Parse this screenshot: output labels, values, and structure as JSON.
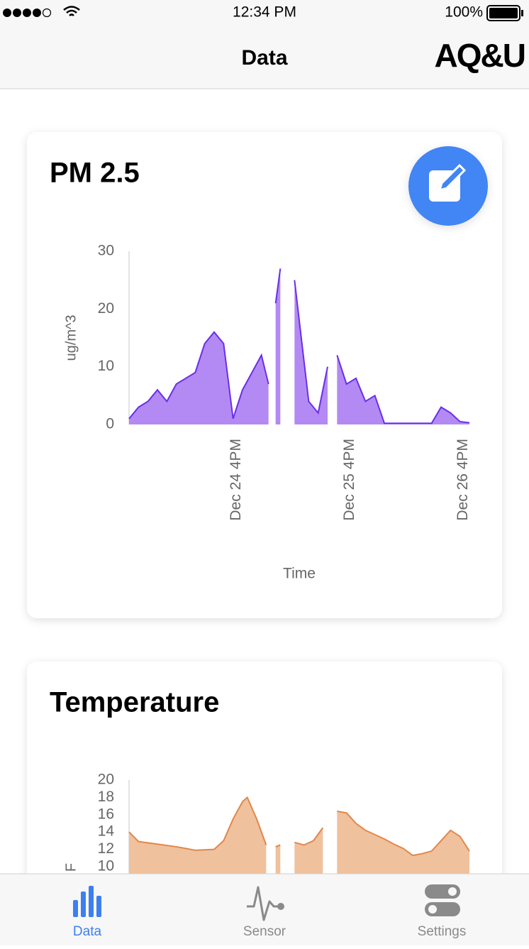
{
  "status_bar": {
    "time": "12:34 PM",
    "battery": "100%"
  },
  "nav": {
    "title": "Data",
    "logo": "AQ&U"
  },
  "chart_data": [
    {
      "type": "area",
      "title": "PM 2.5",
      "ylabel": "ug/m^3",
      "xlabel": "Time",
      "color": "#6a2ee8",
      "fill": "#b38af3",
      "xlim": [
        -23,
        49
      ],
      "xticks": [
        {
          "value": 0,
          "label": "Dec 24 4PM"
        },
        {
          "value": 24,
          "label": "Dec 25 4PM"
        },
        {
          "value": 48,
          "label": "Dec 26 4PM"
        }
      ],
      "ylim": [
        0,
        30
      ],
      "yticks": [
        0,
        10,
        20,
        30
      ],
      "x": [
        -23,
        -21,
        -19,
        -17,
        -15,
        -13,
        -11,
        -9,
        -7,
        -5,
        -3,
        -1,
        1,
        3,
        5,
        6.5,
        7,
        8,
        9,
        10,
        11,
        12,
        13,
        15,
        17,
        19,
        20,
        21,
        23,
        25,
        27,
        29,
        31,
        33,
        35,
        37,
        39,
        41,
        43,
        45,
        47,
        49
      ],
      "values": [
        1,
        3,
        4,
        6,
        4,
        7,
        8,
        9,
        14,
        16,
        14,
        1,
        6,
        9,
        12,
        7,
        null,
        21,
        27,
        null,
        null,
        25,
        18,
        4,
        2,
        10,
        null,
        12,
        7,
        8,
        4,
        5,
        0.2,
        0.2,
        0.2,
        0.2,
        0.2,
        0.2,
        3,
        2,
        0.5,
        0.3
      ]
    },
    {
      "type": "area",
      "title": "Temperature",
      "ylabel": "F",
      "color": "#e0884a",
      "fill": "#f0c19d",
      "xlim": [
        -23,
        49
      ],
      "ylim": [
        10,
        20
      ],
      "yticks": [
        10,
        12,
        14,
        16,
        18,
        20
      ],
      "x": [
        -23,
        -21,
        -17,
        -13,
        -9,
        -5,
        -3,
        -1,
        1,
        2,
        4,
        6,
        7,
        8,
        9,
        10,
        11,
        12,
        14,
        16,
        18,
        20,
        21,
        23,
        25,
        27,
        29,
        31,
        33,
        35,
        37,
        39,
        41,
        43,
        45,
        47,
        49
      ],
      "values": [
        14,
        12.9,
        12.6,
        12.3,
        11.9,
        12,
        13,
        15.5,
        17.5,
        18,
        15.5,
        12.5,
        null,
        12.3,
        12.5,
        null,
        null,
        12.8,
        12.5,
        13,
        14.5,
        null,
        16.4,
        16.2,
        15,
        14.2,
        13.7,
        13.2,
        12.6,
        12.1,
        11.3,
        11.5,
        11.8,
        13,
        14.2,
        13.5,
        11.8
      ]
    }
  ],
  "tab_bar": {
    "tabs": [
      "Data",
      "Sensor",
      "Settings"
    ]
  }
}
